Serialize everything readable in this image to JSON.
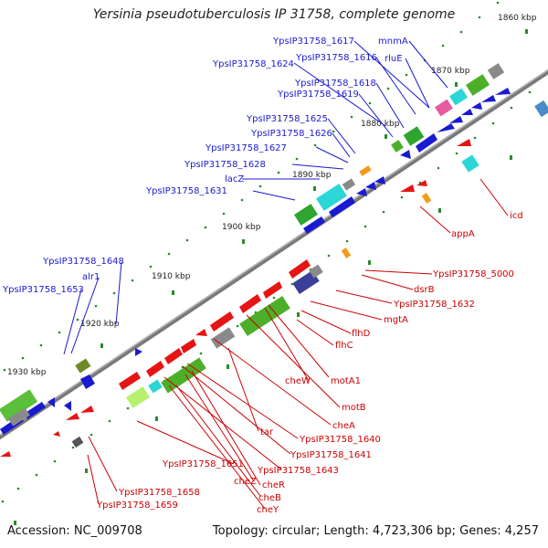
{
  "title": "Yersinia pseudotuberculosis IP 31758, complete genome",
  "footer": {
    "accession": "Accession: NC_009708",
    "summary": "Topology: circular; Length: 4,723,306 bp; Genes: 4,257"
  },
  "colors": {
    "forward_label": "#1a1ad0",
    "reverse_label": "#cc0000",
    "forward_gene": "#0a14e6",
    "reverse_gene": "#e61414",
    "backbone": "#808080",
    "tick_dot": "#2a8a2a"
  },
  "ticks": [
    "1860 kbp",
    "1870 kbp",
    "1880 kbp",
    "1890 kbp",
    "1900 kbp",
    "1910 kbp",
    "1920 kbp",
    "1930 kbp"
  ],
  "upper_labels": [
    "YpsIP31758_1617",
    "mnmA",
    "YpsIP31758_1624",
    "YpsIP31758_1616",
    "rluE",
    "YpsIP31758_1618",
    "YpsIP31758_1619",
    "YpsIP31758_1625",
    "YpsIP31758_1626",
    "YpsIP31758_1627",
    "YpsIP31758_1628",
    "lacZ",
    "YpsIP31758_1631",
    "YpsIP31758_1648",
    "alr1",
    "YpsIP31758_1653"
  ],
  "lower_labels": [
    "icd",
    "appA",
    "YpsIP31758_5000",
    "dsrB",
    "YpsIP31758_1632",
    "mgtA",
    "flhD",
    "flhC",
    "motA1",
    "cheW",
    "motB",
    "cheA",
    "tar",
    "YpsIP31758_1640",
    "YpsIP31758_1641",
    "YpsIP31758_1643",
    "YpsIP31758_1651",
    "cheZ",
    "cheR",
    "cheB",
    "cheY",
    "YpsIP31758_1658",
    "YpsIP31758_1659"
  ]
}
